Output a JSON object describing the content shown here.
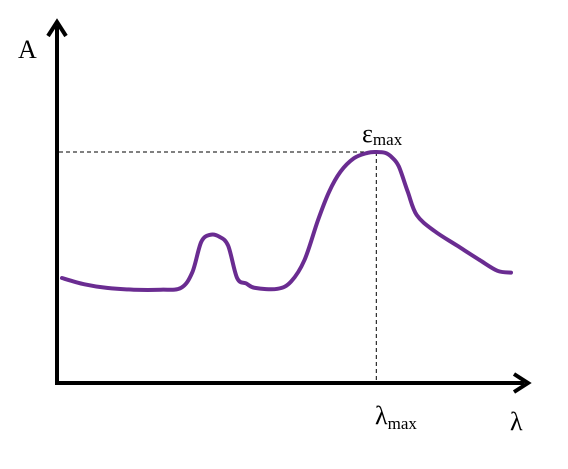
{
  "chart_data": {
    "type": "line",
    "ylabel": "A",
    "xlabel": "λ",
    "peak_label_symbol": "ε",
    "peak_label_sub": "max",
    "xmax_label_symbol": "λ",
    "xmax_label_sub": "max",
    "x_range": [
      0,
      100
    ],
    "y_range": [
      0,
      100
    ],
    "series": [
      {
        "color": "#6a2c91",
        "x": [
          0,
          5,
          10,
          16,
          22,
          26.5,
          29,
          31,
          33,
          35,
          37,
          39,
          41,
          43,
          48,
          51,
          54,
          57,
          59.5,
          62,
          65,
          68,
          70,
          72,
          73.5,
          75,
          77,
          79,
          83,
          88,
          93,
          97,
          100
        ],
        "y": [
          30,
          26.5,
          24.5,
          23.5,
          23.5,
          24.5,
          33,
          50,
          54,
          53,
          48,
          30,
          27,
          24.5,
          24,
          28,
          40,
          62,
          78,
          89,
          96.5,
          99.5,
          100,
          99.5,
          97,
          92,
          78,
          65,
          56,
          48,
          40,
          34,
          33
        ]
      }
    ],
    "peak": {
      "x": 70,
      "y": 100
    },
    "axes_color": "#000000",
    "guide_lines": "dashed"
  }
}
